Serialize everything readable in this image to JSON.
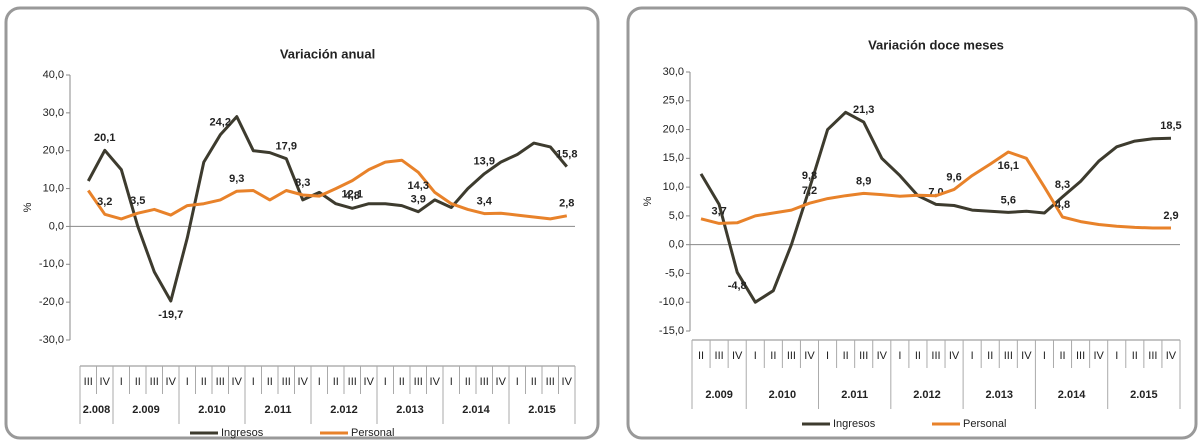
{
  "chart_data": [
    {
      "type": "line",
      "title": "Variación anual",
      "ylabel": "%",
      "categories": [
        "III",
        "IV",
        "I",
        "II",
        "III",
        "IV",
        "I",
        "II",
        "III",
        "IV",
        "I",
        "II",
        "III",
        "IV",
        "I",
        "II",
        "III",
        "IV",
        "I",
        "II",
        "III",
        "IV",
        "I",
        "II",
        "III",
        "IV",
        "I",
        "II",
        "III",
        "IV"
      ],
      "category_groups": [
        "2.008",
        "2.009",
        "2.010",
        "2.011",
        "2.012",
        "2.013",
        "2.014",
        "2.015"
      ],
      "series": [
        {
          "name": "Ingresos",
          "color": "#3d3b2e",
          "values": [
            12,
            20.1,
            15,
            0,
            -12,
            -19.7,
            -3,
            17,
            24.2,
            29,
            20,
            19.5,
            17.9,
            7,
            9,
            6,
            4.8,
            6,
            6,
            5.5,
            3.9,
            7,
            5,
            10,
            13.9,
            17,
            19,
            22,
            21,
            15.8
          ],
          "value_labels": [
            null,
            "20,1",
            null,
            null,
            null,
            "-19,7",
            null,
            null,
            "24,2",
            null,
            null,
            null,
            "17,9",
            null,
            null,
            null,
            "4,8",
            null,
            null,
            null,
            "3,9",
            null,
            null,
            null,
            "13,9",
            null,
            null,
            null,
            null,
            "15,8"
          ]
        },
        {
          "name": "Personal",
          "color": "#e8822a",
          "values": [
            9.5,
            3.2,
            2,
            3.5,
            4.5,
            3,
            5.5,
            6,
            7,
            9.3,
            9.5,
            7,
            9.5,
            8.3,
            8,
            10,
            12.1,
            15,
            17,
            17.5,
            14.3,
            9,
            6,
            4.5,
            3.4,
            3.5,
            3,
            2.5,
            2,
            2.8
          ],
          "value_labels": [
            null,
            "3,2",
            null,
            "3,5",
            null,
            null,
            null,
            null,
            null,
            "9,3",
            null,
            null,
            null,
            "8,3",
            null,
            null,
            "12,1",
            null,
            null,
            null,
            "14,3",
            null,
            null,
            null,
            "3,4",
            null,
            null,
            null,
            null,
            "2,8"
          ]
        }
      ],
      "ylim": [
        -30,
        40
      ],
      "yticks": [
        {
          "value": -30,
          "label": "-30,0"
        },
        {
          "value": -20,
          "label": "-20,0"
        },
        {
          "value": -10,
          "label": "-10,0"
        },
        {
          "value": 0,
          "label": "0,0"
        },
        {
          "value": 10,
          "label": "10,0"
        },
        {
          "value": 20,
          "label": "20,0"
        },
        {
          "value": 30,
          "label": "30,0"
        },
        {
          "value": 40,
          "label": "40,0"
        }
      ],
      "legend": "bottom"
    },
    {
      "type": "line",
      "title": "Variación doce meses",
      "ylabel": "%",
      "categories": [
        "II",
        "III",
        "IV",
        "I",
        "II",
        "III",
        "IV",
        "I",
        "II",
        "III",
        "IV",
        "I",
        "II",
        "III",
        "IV",
        "I",
        "II",
        "III",
        "IV",
        "I",
        "II",
        "III",
        "IV",
        "I",
        "II",
        "III",
        "IV"
      ],
      "category_groups": [
        "2.009",
        "2.010",
        "2.011",
        "2.012",
        "2.013",
        "2.014",
        "2.015"
      ],
      "series": [
        {
          "name": "Ingresos",
          "color": "#3d3b2e",
          "values": [
            12.3,
            7,
            -4.8,
            -10,
            -8,
            0,
            9.8,
            20,
            23,
            21.3,
            15,
            12,
            8.5,
            7.0,
            6.8,
            6,
            5.8,
            5.6,
            5.8,
            5.5,
            8.3,
            11,
            14.5,
            17,
            18,
            18.4,
            18.5
          ],
          "value_labels": [
            null,
            null,
            "-4,8",
            null,
            null,
            null,
            "9,8",
            null,
            null,
            "21,3",
            null,
            null,
            null,
            "7,0",
            null,
            null,
            null,
            "5,6",
            null,
            null,
            "8,3",
            null,
            null,
            null,
            null,
            null,
            "18,5"
          ]
        },
        {
          "name": "Personal",
          "color": "#e8822a",
          "values": [
            4.5,
            3.7,
            3.8,
            5,
            5.5,
            6,
            7.2,
            8,
            8.5,
            8.9,
            8.7,
            8.4,
            8.6,
            8.5,
            9.6,
            12,
            14,
            16.1,
            15,
            10,
            4.8,
            4,
            3.5,
            3.2,
            3,
            2.9,
            2.9
          ],
          "value_labels": [
            null,
            "3,7",
            null,
            null,
            null,
            null,
            "7,2",
            null,
            null,
            "8,9",
            null,
            null,
            null,
            null,
            "9,6",
            null,
            null,
            "16,1",
            null,
            null,
            "4,8",
            null,
            null,
            null,
            null,
            null,
            "2,9"
          ]
        }
      ],
      "ylim": [
        -15,
        30
      ],
      "yticks": [
        {
          "value": -15,
          "label": "-15,0"
        },
        {
          "value": -10,
          "label": "-10,0"
        },
        {
          "value": -5,
          "label": "-5,0"
        },
        {
          "value": 0,
          "label": "0,0"
        },
        {
          "value": 5,
          "label": "5,0"
        },
        {
          "value": 10,
          "label": "10,0"
        },
        {
          "value": 15,
          "label": "15,0"
        },
        {
          "value": 20,
          "label": "20,0"
        },
        {
          "value": 25,
          "label": "25,0"
        },
        {
          "value": 30,
          "label": "30,0"
        }
      ],
      "legend": "bottom"
    }
  ]
}
